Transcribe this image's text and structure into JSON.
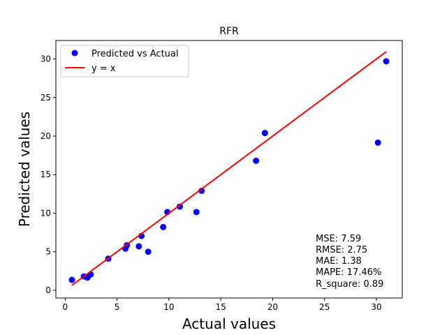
{
  "chart_data": {
    "type": "scatter",
    "title": "RFR",
    "xlabel": "Actual values",
    "ylabel": "Predicted values",
    "xlim": [
      -0.9,
      32.5
    ],
    "ylim": [
      -1.0,
      32.4
    ],
    "xticks": [
      0,
      5,
      10,
      15,
      20,
      25,
      30
    ],
    "yticks": [
      0,
      5,
      10,
      15,
      20,
      25,
      30
    ],
    "grid": false,
    "legend_position": "top-left",
    "series": [
      {
        "name": "Predicted vs Actual",
        "kind": "scatter",
        "color": "#0000ff",
        "points": [
          [
            0.65,
            1.35
          ],
          [
            1.8,
            1.8
          ],
          [
            2.15,
            1.65
          ],
          [
            2.45,
            2.05
          ],
          [
            4.15,
            4.1
          ],
          [
            5.8,
            5.4
          ],
          [
            5.95,
            5.85
          ],
          [
            7.1,
            5.7
          ],
          [
            7.35,
            7.05
          ],
          [
            8.0,
            5.0
          ],
          [
            9.45,
            8.2
          ],
          [
            9.85,
            10.15
          ],
          [
            11.05,
            10.85
          ],
          [
            12.65,
            10.15
          ],
          [
            13.15,
            12.9
          ],
          [
            18.4,
            16.8
          ],
          [
            19.25,
            20.4
          ],
          [
            30.15,
            19.15
          ],
          [
            30.95,
            29.7
          ]
        ]
      },
      {
        "name": "y = x",
        "kind": "line",
        "color": "#ff0000",
        "points": [
          [
            0.65,
            0.65
          ],
          [
            30.95,
            30.95
          ]
        ]
      }
    ],
    "annotation_lines": [
      "MSE: 7.59",
      "RMSE: 2.75",
      "MAE: 1.38",
      "MAPE: 17.46%",
      "R_square: 0.89"
    ]
  }
}
